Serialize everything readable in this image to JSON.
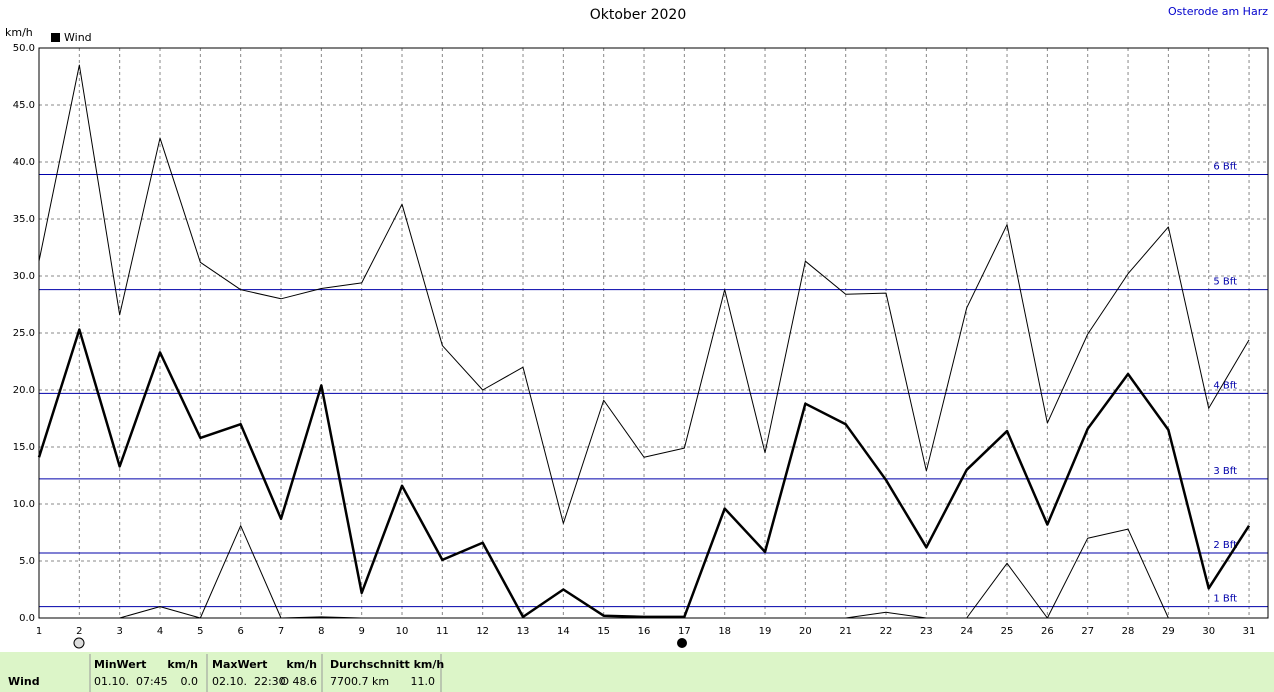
{
  "chart_data": {
    "type": "line",
    "title": "Oktober 2020",
    "location": "Osterode am Harz",
    "y_unit": "km/h",
    "legend": {
      "label": "Wind",
      "color": "#000000"
    },
    "x": [
      1,
      2,
      3,
      4,
      5,
      6,
      7,
      8,
      9,
      10,
      11,
      12,
      13,
      14,
      15,
      16,
      17,
      18,
      19,
      20,
      21,
      22,
      23,
      24,
      25,
      26,
      27,
      28,
      29,
      30,
      31
    ],
    "xlim": [
      1,
      31.47
    ],
    "xticks": [
      1,
      2,
      3,
      4,
      5,
      6,
      7,
      8,
      9,
      10,
      11,
      12,
      13,
      14,
      15,
      16,
      17,
      18,
      19,
      20,
      21,
      22,
      23,
      24,
      25,
      26,
      27,
      28,
      29,
      30,
      31
    ],
    "ylim": [
      0,
      50
    ],
    "yticks": [
      {
        "value": 0,
        "label": "0.0"
      },
      {
        "value": 5,
        "label": "5.0"
      },
      {
        "value": 10,
        "label": "10.0"
      },
      {
        "value": 15,
        "label": "15.0"
      },
      {
        "value": 20,
        "label": "20.0"
      },
      {
        "value": 25,
        "label": "25.0"
      },
      {
        "value": 30,
        "label": "30.0"
      },
      {
        "value": 35,
        "label": "35.0"
      },
      {
        "value": 40,
        "label": "40.0"
      },
      {
        "value": 45,
        "label": "45.0"
      },
      {
        "value": 50,
        "label": "50.0"
      }
    ],
    "grid": true,
    "reference_lines": {
      "color": "#0000aa",
      "lines": [
        {
          "value": 1.0,
          "label": "1 Bft"
        },
        {
          "value": 5.7,
          "label": "2 Bft"
        },
        {
          "value": 12.2,
          "label": "3 Bft"
        },
        {
          "value": 19.7,
          "label": "4 Bft"
        },
        {
          "value": 28.8,
          "label": "5 Bft"
        },
        {
          "value": 38.9,
          "label": "6 Bft"
        }
      ]
    },
    "series": [
      {
        "color": "#000000",
        "line_width": 1,
        "values": [
          31.3,
          48.5,
          26.6,
          42.1,
          31.2,
          28.8,
          28.0,
          28.9,
          29.4,
          36.3,
          23.9,
          20.0,
          22.0,
          8.3,
          19.1,
          14.1,
          14.9,
          28.8,
          14.5,
          31.3,
          28.4,
          28.5,
          12.9,
          27.2,
          34.5,
          17.1,
          24.9,
          30.2,
          34.3,
          18.4,
          24.4
        ]
      },
      {
        "color": "#000000",
        "line_width": 2.5,
        "values": [
          14.1,
          25.3,
          13.3,
          23.3,
          15.8,
          17.0,
          8.7,
          20.4,
          2.2,
          11.6,
          5.1,
          6.6,
          0.1,
          2.5,
          0.2,
          0.1,
          0.1,
          9.6,
          5.8,
          18.8,
          17.0,
          12.1,
          6.2,
          13.0,
          16.4,
          8.2,
          16.6,
          21.4,
          16.5,
          2.6,
          8.1
        ]
      },
      {
        "color": "#000000",
        "line_width": 1,
        "values": [
          0,
          0,
          0,
          1.0,
          0,
          8.1,
          0,
          0.1,
          0,
          0,
          0,
          0,
          0,
          0,
          0,
          0,
          0,
          0,
          0,
          0,
          0,
          0.5,
          0,
          0,
          4.8,
          0,
          7.0,
          7.8,
          0,
          0,
          0
        ]
      }
    ]
  },
  "summary": {
    "label": "Wind",
    "headers": [
      "MinWert",
      "km/h",
      "MaxWert",
      "km/h",
      "Durchschnitt km/h"
    ],
    "values": [
      "01.10.  07:45",
      "0.0",
      "02.10.  22:30",
      "O 48.6",
      "7700.7 km",
      "11.0"
    ]
  }
}
